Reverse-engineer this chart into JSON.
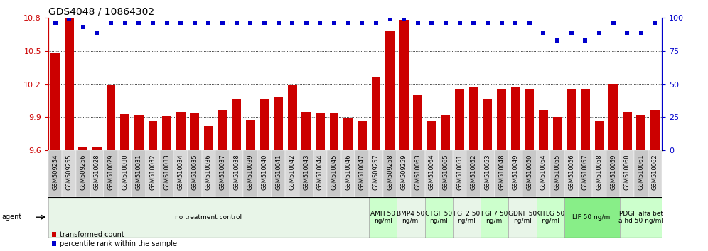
{
  "title": "GDS4048 / 10864302",
  "ylim_left": [
    9.6,
    10.8
  ],
  "ylim_right": [
    0,
    100
  ],
  "yticks_left": [
    9.6,
    9.9,
    10.2,
    10.5,
    10.8
  ],
  "yticks_right": [
    0,
    25,
    50,
    75,
    100
  ],
  "samples": [
    "GSM509254",
    "GSM509255",
    "GSM509256",
    "GSM510028",
    "GSM510029",
    "GSM510030",
    "GSM510031",
    "GSM510032",
    "GSM510033",
    "GSM510034",
    "GSM510035",
    "GSM510036",
    "GSM510037",
    "GSM510038",
    "GSM510039",
    "GSM510040",
    "GSM510041",
    "GSM510042",
    "GSM510043",
    "GSM510044",
    "GSM510045",
    "GSM510046",
    "GSM510047",
    "GSM509257",
    "GSM509258",
    "GSM509259",
    "GSM510063",
    "GSM510064",
    "GSM510065",
    "GSM510051",
    "GSM510052",
    "GSM510053",
    "GSM510048",
    "GSM510049",
    "GSM510050",
    "GSM510054",
    "GSM510055",
    "GSM510056",
    "GSM510057",
    "GSM510058",
    "GSM510059",
    "GSM510060",
    "GSM510061",
    "GSM510062"
  ],
  "bar_values": [
    10.48,
    10.8,
    9.63,
    9.63,
    10.19,
    9.93,
    9.92,
    9.87,
    9.91,
    9.95,
    9.94,
    9.82,
    9.97,
    10.06,
    9.88,
    10.06,
    10.08,
    10.19,
    9.95,
    9.94,
    9.94,
    9.89,
    9.87,
    10.27,
    10.68,
    10.78,
    10.1,
    9.87,
    9.92,
    10.15,
    10.17,
    10.07,
    10.15,
    10.17,
    10.15,
    9.97,
    9.9,
    10.15,
    10.15,
    9.87,
    10.2,
    9.95,
    9.92,
    9.97
  ],
  "percentile_values": [
    96,
    99,
    93,
    88,
    96,
    96,
    96,
    96,
    96,
    96,
    96,
    96,
    96,
    96,
    96,
    96,
    96,
    96,
    96,
    96,
    96,
    96,
    96,
    96,
    99,
    99,
    96,
    96,
    96,
    96,
    96,
    96,
    96,
    96,
    96,
    88,
    83,
    88,
    83,
    88,
    96,
    88,
    88,
    96
  ],
  "bar_color": "#cc0000",
  "dot_color": "#0000cc",
  "groups": [
    {
      "label": "no treatment control",
      "start": 0,
      "end": 23,
      "color": "#e8f5e8"
    },
    {
      "label": "AMH 50\nng/ml",
      "start": 23,
      "end": 25,
      "color": "#ccffcc"
    },
    {
      "label": "BMP4 50\nng/ml",
      "start": 25,
      "end": 27,
      "color": "#e8f5e8"
    },
    {
      "label": "CTGF 50\nng/ml",
      "start": 27,
      "end": 29,
      "color": "#ccffcc"
    },
    {
      "label": "FGF2 50\nng/ml",
      "start": 29,
      "end": 31,
      "color": "#e8f5e8"
    },
    {
      "label": "FGF7 50\nng/ml",
      "start": 31,
      "end": 33,
      "color": "#ccffcc"
    },
    {
      "label": "GDNF 50\nng/ml",
      "start": 33,
      "end": 35,
      "color": "#e8f5e8"
    },
    {
      "label": "KITLG 50\nng/ml",
      "start": 35,
      "end": 37,
      "color": "#ccffcc"
    },
    {
      "label": "LIF 50 ng/ml",
      "start": 37,
      "end": 41,
      "color": "#88ee88"
    },
    {
      "label": "PDGF alfa bet\na hd 50 ng/ml",
      "start": 41,
      "end": 44,
      "color": "#ccffcc"
    }
  ],
  "xlabel_fontsize": 6.0,
  "title_fontsize": 10,
  "tick_fontsize": 8,
  "agent_fontsize": 6.5,
  "left_axis_color": "#cc0000",
  "right_axis_color": "#0000cc",
  "background_color": "#ffffff",
  "grid_color": "#000000"
}
